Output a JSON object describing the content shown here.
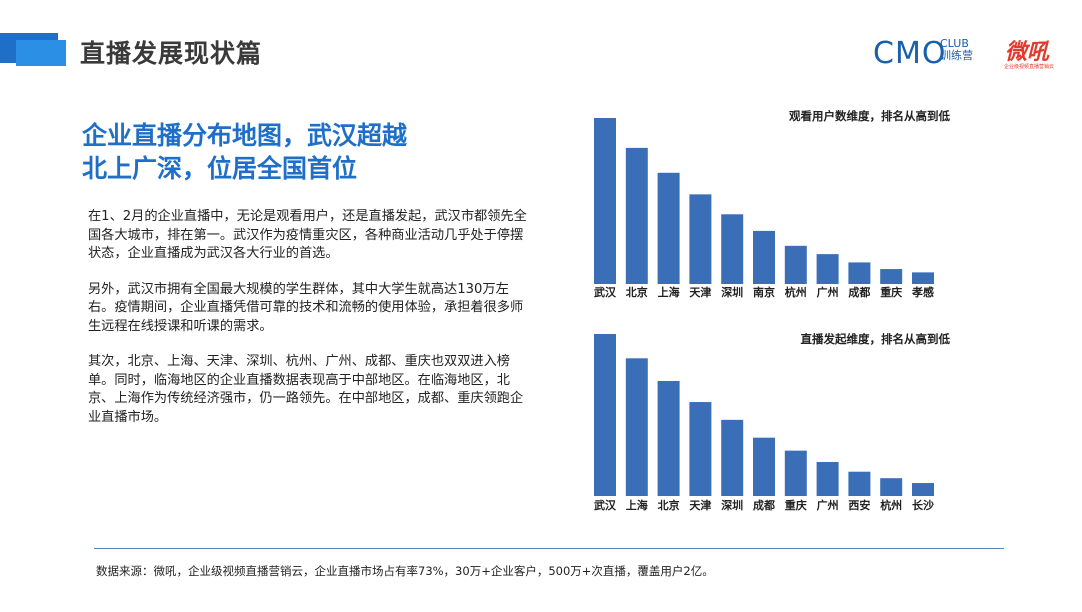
{
  "header": {
    "title": "直播发展现状篇",
    "logos": {
      "cmo": "CMO",
      "club": "CLUB",
      "club_cn": "训练营",
      "weihou": "微吼",
      "weihou_sub": "企业级视频直播营销云"
    }
  },
  "headline": {
    "line1": "企业直播分布地图，武汉超越",
    "line2": "北上广深，位居全国首位"
  },
  "body": {
    "paragraphs": [
      "在1、2月的企业直播中，无论是观看用户，还是直播发起，武汉市都领先全国各大城市，排在第一。武汉作为疫情重灾区，各种商业活动几乎处于停摆状态，企业直播成为武汉各大行业的首选。",
      "另外，武汉市拥有全国最大规模的学生群体，其中大学生就高达130万左右。疫情期间，企业直播凭借可靠的技术和流畅的使用体验，承担着很多师生远程在线授课和听课的需求。",
      "其次，北京、上海、天津、深圳、杭州、广州、成都、重庆也双双进入榜单。同时，临海地区的企业直播数据表现高于中部地区。在临海地区，北京、上海作为传统经济强市，仍一路领先。在中部地区，成都、重庆领跑企业直播市场。"
    ]
  },
  "chart_data": [
    {
      "type": "bar",
      "title": "观看用户数维度，排名从高到低",
      "categories": [
        "武汉",
        "北京",
        "上海",
        "天津",
        "深圳",
        "南京",
        "杭州",
        "广州",
        "成都",
        "重庆",
        "孝感"
      ],
      "values": [
        100,
        82,
        67,
        54,
        42,
        32,
        23,
        18,
        13,
        9,
        7
      ],
      "xlabel": "",
      "ylabel": "",
      "ylim": [
        0,
        100
      ],
      "grid": false,
      "color": "#3a6fb7"
    },
    {
      "type": "bar",
      "title": "直播发起维度，排名从高到低",
      "categories": [
        "武汉",
        "上海",
        "北京",
        "天津",
        "深圳",
        "成都",
        "重庆",
        "广州",
        "西安",
        "杭州",
        "长沙"
      ],
      "values": [
        100,
        85,
        71,
        58,
        47,
        36,
        28,
        21,
        15,
        11,
        8
      ],
      "xlabel": "",
      "ylabel": "",
      "ylim": [
        0,
        100
      ],
      "grid": false,
      "color": "#3a6fb7"
    }
  ],
  "footer": {
    "source": "数据来源：微吼，企业级视频直播营销云，企业直播市场占有率73%，30万+企业客户，500万+次直播，覆盖用户2亿。"
  }
}
